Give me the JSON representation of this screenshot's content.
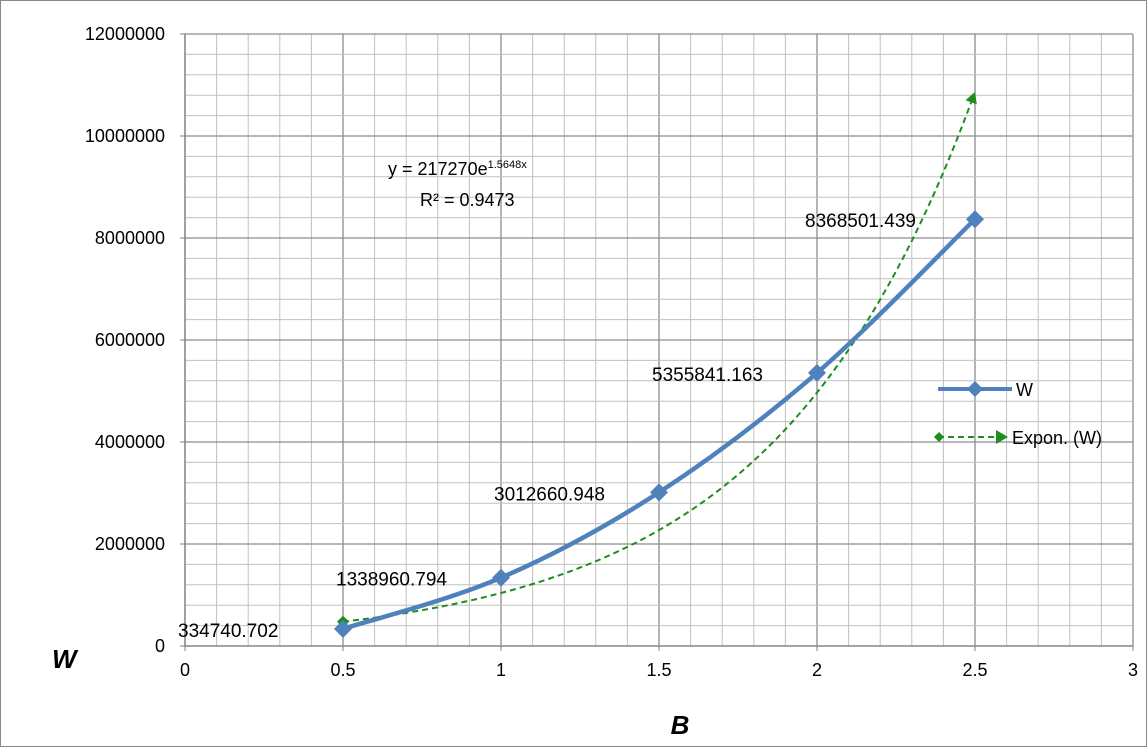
{
  "chart_data": {
    "type": "line",
    "xlabel": "B",
    "ylabel": "W",
    "xlim": [
      0,
      3
    ],
    "ylim": [
      0,
      12000000
    ],
    "x_ticks": [
      "0",
      "0.5",
      "1",
      "1.5",
      "2",
      "2.5",
      "3"
    ],
    "y_ticks": [
      "0",
      "2000000",
      "4000000",
      "6000000",
      "8000000",
      "10000000",
      "12000000"
    ],
    "grid": true,
    "legend_position": "right",
    "series": [
      {
        "name": "W",
        "color": "#4F81BD",
        "marker": "diamond",
        "smooth": true,
        "x": [
          0.5,
          1,
          1.5,
          2,
          2.5
        ],
        "values": [
          334740.702,
          1338960.794,
          3012660.948,
          5355841.163,
          8368501.439
        ],
        "data_labels": [
          "334740.702",
          "1338960.794",
          "3012660.948",
          "5355841.163",
          "8368501.439"
        ]
      }
    ],
    "trendline": {
      "name": "Expon. (W)",
      "type": "exponential",
      "color": "#1E8C1E",
      "style": "dashed",
      "coefficient": 217270,
      "exponent": 1.5648,
      "x_range": [
        0.5,
        2.5
      ],
      "equation_base": "y = 217270e",
      "equation_exponent": "1.5648x",
      "r_squared_label": "R² = 0.9473"
    }
  }
}
